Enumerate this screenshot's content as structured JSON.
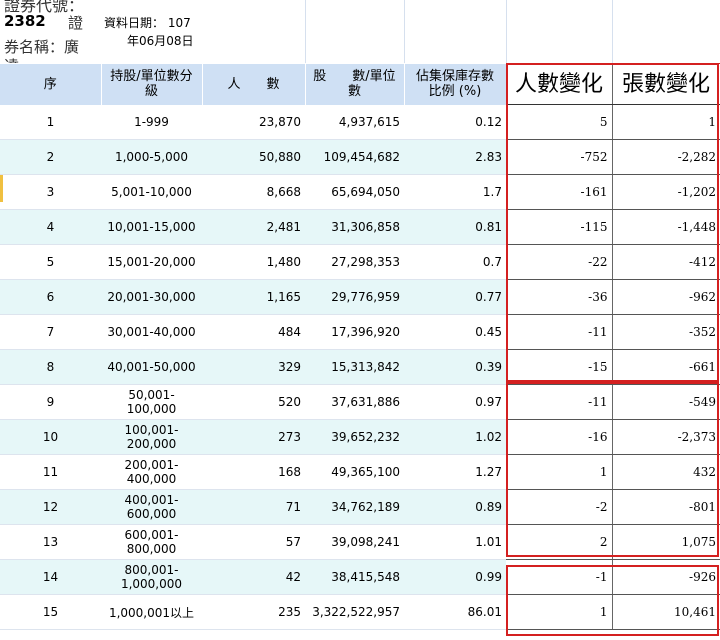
{
  "meta": {
    "code_label": "證券代號：",
    "code": "2382",
    "zheng": "證",
    "name_label": "券名稱：廣",
    "trunc": "達",
    "date_label": "資料日期： 107",
    "date_line2": "年06月08日"
  },
  "headers": {
    "seq": "序",
    "range_l1": "持股/單位數分",
    "range_l2": "級",
    "people": "人　　數",
    "shares_l1": "股　　數/單位",
    "shares_l2": "數",
    "pct_l1": "佔集保庫存數",
    "pct_l2": "比例 (%)",
    "people_change": "人數變化",
    "lots_change": "張數變化"
  },
  "rows": [
    {
      "seq": "1",
      "range": "1-999",
      "people": "23,870",
      "shares": "4,937,615",
      "pct": "0.12",
      "dp": "5",
      "dl": "1"
    },
    {
      "seq": "2",
      "range": "1,000-5,000",
      "people": "50,880",
      "shares": "109,454,682",
      "pct": "2.83",
      "dp": "-752",
      "dl": "-2,282"
    },
    {
      "seq": "3",
      "range": "5,001-10,000",
      "people": "8,668",
      "shares": "65,694,050",
      "pct": "1.7",
      "dp": "-161",
      "dl": "-1,202"
    },
    {
      "seq": "4",
      "range": "10,001-15,000",
      "people": "2,481",
      "shares": "31,306,858",
      "pct": "0.81",
      "dp": "-115",
      "dl": "-1,448"
    },
    {
      "seq": "5",
      "range": "15,001-20,000",
      "people": "1,480",
      "shares": "27,298,353",
      "pct": "0.7",
      "dp": "-22",
      "dl": "-412"
    },
    {
      "seq": "6",
      "range": "20,001-30,000",
      "people": "1,165",
      "shares": "29,776,959",
      "pct": "0.77",
      "dp": "-36",
      "dl": "-962"
    },
    {
      "seq": "7",
      "range": "30,001-40,000",
      "people": "484",
      "shares": "17,396,920",
      "pct": "0.45",
      "dp": "-11",
      "dl": "-352"
    },
    {
      "seq": "8",
      "range": "40,001-50,000",
      "people": "329",
      "shares": "15,313,842",
      "pct": "0.39",
      "dp": "-15",
      "dl": "-661"
    },
    {
      "seq": "9",
      "range": "50,001-100,000",
      "people": "520",
      "shares": "37,631,886",
      "pct": "0.97",
      "dp": "-11",
      "dl": "-549"
    },
    {
      "seq": "10",
      "range": "100,001-200,000",
      "people": "273",
      "shares": "39,652,232",
      "pct": "1.02",
      "dp": "-16",
      "dl": "-2,373"
    },
    {
      "seq": "11",
      "range": "200,001-400,000",
      "people": "168",
      "shares": "49,365,100",
      "pct": "1.27",
      "dp": "1",
      "dl": "432"
    },
    {
      "seq": "12",
      "range": "400,001-600,000",
      "people": "71",
      "shares": "34,762,189",
      "pct": "0.89",
      "dp": "-2",
      "dl": "-801"
    },
    {
      "seq": "13",
      "range": "600,001-800,000",
      "people": "57",
      "shares": "39,098,241",
      "pct": "1.01",
      "dp": "2",
      "dl": "1,075"
    },
    {
      "seq": "14",
      "range": "800,001-1,000,000",
      "range_l1": "800,001-",
      "range_l2": "1,000,000",
      "people": "42",
      "shares": "38,415,548",
      "pct": "0.99",
      "dp": "-1",
      "dl": "-926"
    },
    {
      "seq": "15",
      "range": "1,000,001以上",
      "people": "235",
      "shares": "3,322,522,957",
      "pct": "86.01",
      "dp": "1",
      "dl": "10,461"
    }
  ],
  "colors": {
    "header_bg": "#cfe0f4",
    "alt_row_bg": "#e6f7f8",
    "highlight_border": "#d42020"
  }
}
